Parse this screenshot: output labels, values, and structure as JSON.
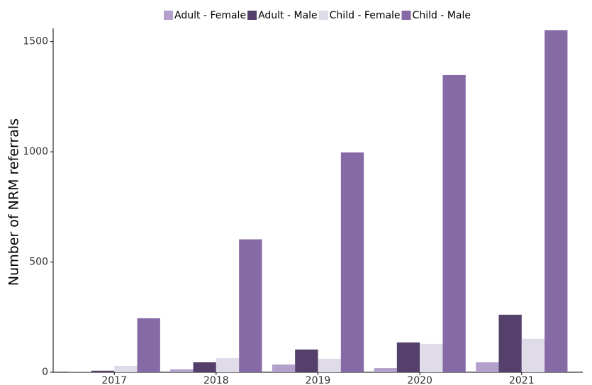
{
  "chart_data": {
    "type": "bar",
    "y_label": "Number of NRM referrals",
    "categories": [
      "2017",
      "2018",
      "2019",
      "2020",
      "2021"
    ],
    "series": [
      {
        "name": "Adult - Female",
        "color": "#b3a0cc",
        "values": [
          1,
          13,
          35,
          19,
          45
        ]
      },
      {
        "name": "Adult - Male",
        "color": "#54406b",
        "values": [
          7,
          45,
          103,
          135,
          261
        ]
      },
      {
        "name": "Child - Female",
        "color": "#e0dbe9",
        "values": [
          29,
          64,
          61,
          129,
          152
        ]
      },
      {
        "name": "Child - Male",
        "color": "#866aa6",
        "values": [
          245,
          603,
          997,
          1348,
          1552
        ]
      }
    ],
    "ylim": [
      0,
      1560
    ],
    "yticks": [
      0,
      500,
      1000,
      1500
    ],
    "grid": false,
    "legend": "top"
  }
}
